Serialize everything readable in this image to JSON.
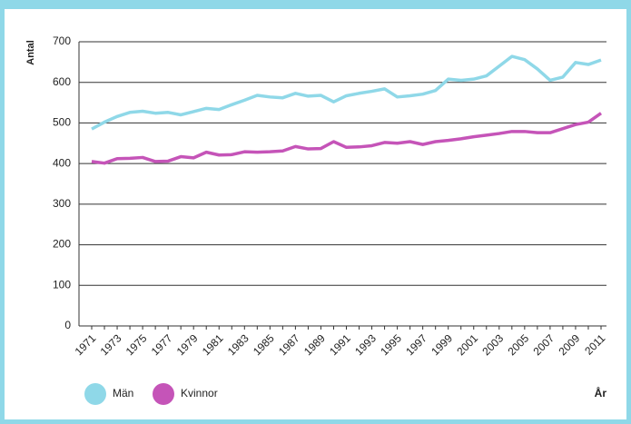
{
  "chart_data": {
    "type": "line",
    "y_label": "Antal",
    "x_label": "År",
    "categories": [
      "1971",
      null,
      "1973",
      null,
      "1975",
      null,
      "1977",
      null,
      "1979",
      null,
      "1981",
      null,
      "1983",
      null,
      "1985",
      null,
      "1987",
      null,
      "1989",
      null,
      "1991",
      null,
      "1993",
      null,
      "1995",
      null,
      "1997",
      null,
      "1999",
      null,
      "2001",
      null,
      "2003",
      null,
      "2005",
      null,
      "2007",
      null,
      "2009",
      null,
      "2011"
    ],
    "series": [
      {
        "name": "Män",
        "color": "#8fd8e8",
        "values": [
          485,
          502,
          516,
          526,
          529,
          524,
          526,
          520,
          528,
          536,
          533,
          545,
          556,
          568,
          564,
          562,
          573,
          566,
          568,
          552,
          567,
          573,
          578,
          584,
          564,
          567,
          571,
          580,
          608,
          605,
          608,
          616,
          640,
          664,
          656,
          633,
          605,
          613,
          649,
          644,
          655
        ]
      },
      {
        "name": "Kvinnor",
        "color": "#c554b8",
        "values": [
          405,
          401,
          412,
          413,
          415,
          405,
          406,
          417,
          414,
          428,
          421,
          422,
          429,
          428,
          429,
          431,
          442,
          436,
          437,
          454,
          440,
          441,
          444,
          452,
          450,
          454,
          447,
          454,
          457,
          461,
          466,
          470,
          474,
          479,
          479,
          476,
          476,
          486,
          496,
          502,
          524
        ]
      }
    ],
    "ylim": [
      0,
      700
    ],
    "yticks": [
      0,
      100,
      200,
      300,
      400,
      500,
      600,
      700
    ],
    "grid": true
  }
}
